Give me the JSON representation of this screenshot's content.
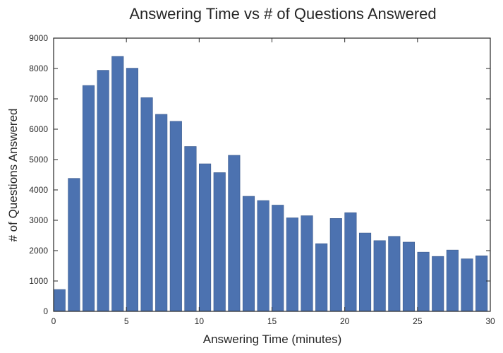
{
  "chart_data": {
    "type": "bar",
    "title": "Answering Time vs # of Questions Answered",
    "xlabel": "Answering Time (minutes)",
    "ylabel": "# of Questions Answered",
    "x": [
      0,
      1,
      2,
      3,
      4,
      5,
      6,
      7,
      8,
      9,
      10,
      11,
      12,
      13,
      14,
      15,
      16,
      17,
      18,
      19,
      20,
      21,
      22,
      23,
      24,
      25,
      26,
      27,
      28,
      29
    ],
    "values": [
      720,
      4380,
      7440,
      7940,
      8400,
      8010,
      7040,
      6490,
      6260,
      5430,
      4860,
      4570,
      5140,
      3790,
      3650,
      3500,
      3080,
      3150,
      2230,
      3060,
      3250,
      2580,
      2330,
      2470,
      2280,
      1950,
      1810,
      2020,
      1730,
      1830
    ],
    "bar_width": 0.8,
    "xlim": [
      0,
      30
    ],
    "ylim": [
      0,
      9000
    ],
    "xticks": [
      0,
      5,
      10,
      15,
      20,
      25,
      30
    ],
    "yticks": [
      0,
      1000,
      2000,
      3000,
      4000,
      5000,
      6000,
      7000,
      8000,
      9000
    ],
    "grid": false,
    "colors": {
      "bar": "#4c72b0",
      "bar_edge": "#3b5a8c",
      "axes": "#262626"
    }
  }
}
